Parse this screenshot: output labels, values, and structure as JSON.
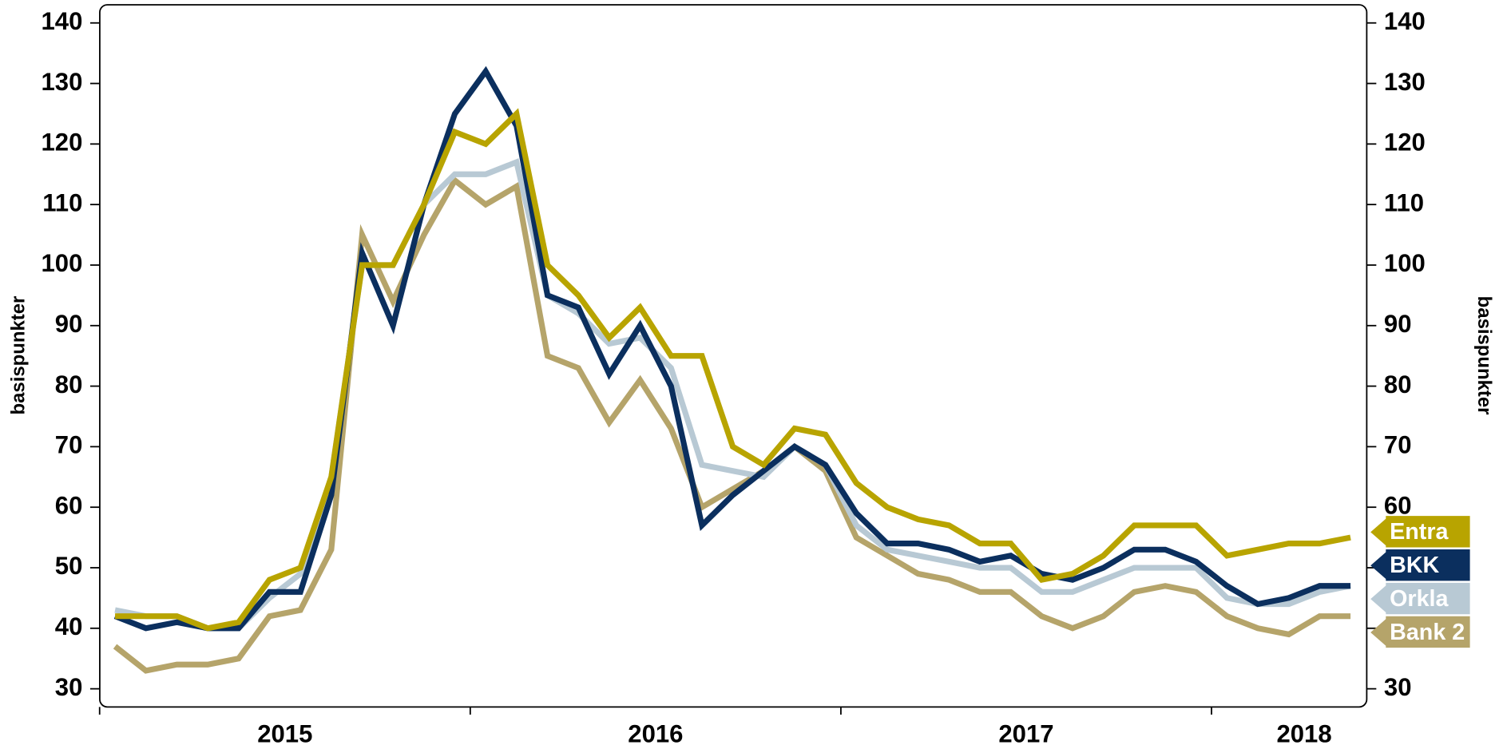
{
  "chart_data": {
    "type": "line",
    "ylabel": "basispunkter",
    "y2label": "basispunkter",
    "categories": [
      null,
      null,
      null,
      null,
      null,
      "2015",
      null,
      null,
      null,
      null,
      null,
      null,
      null,
      null,
      null,
      null,
      null,
      "2016",
      null,
      null,
      null,
      null,
      null,
      null,
      null,
      null,
      null,
      null,
      null,
      "2017",
      null,
      null,
      null,
      null,
      null,
      null,
      null,
      null,
      "2018",
      null,
      null
    ],
    "series": [
      {
        "name": "Entra",
        "color": "#b8a400",
        "values": [
          42,
          42,
          42,
          40,
          41,
          48,
          50,
          65,
          100,
          100,
          110,
          122,
          120,
          125,
          100,
          95,
          88,
          93,
          85,
          85,
          70,
          67,
          73,
          72,
          64,
          60,
          58,
          57,
          54,
          54,
          48,
          49,
          52,
          57,
          57,
          57,
          52,
          53,
          54,
          54,
          55
        ]
      },
      {
        "name": "BKK",
        "color": "#0b2f5e",
        "values": [
          42,
          40,
          41,
          40,
          40,
          46,
          46,
          62,
          102,
          90,
          110,
          125,
          132,
          123,
          95,
          93,
          82,
          90,
          80,
          57,
          62,
          66,
          70,
          67,
          59,
          54,
          54,
          53,
          51,
          52,
          49,
          48,
          50,
          53,
          53,
          51,
          47,
          44,
          45,
          47,
          47
        ]
      },
      {
        "name": "Orkla",
        "color": "#b8c9d4",
        "values": [
          43,
          42,
          42,
          40,
          40,
          45,
          49,
          65,
          100,
          100,
          110,
          115,
          115,
          117,
          95,
          92,
          87,
          88,
          83,
          67,
          66,
          65,
          70,
          67,
          57,
          53,
          52,
          51,
          50,
          50,
          46,
          46,
          48,
          50,
          50,
          50,
          45,
          44,
          44,
          46,
          47
        ]
      },
      {
        "name": "Bank 2",
        "color": "#b5a46a",
        "values": [
          37,
          33,
          34,
          34,
          35,
          42,
          43,
          53,
          105,
          94,
          105,
          114,
          110,
          113,
          85,
          83,
          74,
          81,
          73,
          60,
          63,
          66,
          70,
          66,
          55,
          52,
          49,
          48,
          46,
          46,
          42,
          40,
          42,
          46,
          47,
          46,
          42,
          40,
          39,
          42,
          42
        ]
      }
    ],
    "ylim": [
      27,
      143
    ],
    "yticks": [
      30,
      40,
      50,
      60,
      70,
      80,
      90,
      100,
      110,
      120,
      130,
      140
    ],
    "y2lim": [
      27,
      143
    ],
    "y2ticks": [
      30,
      40,
      50,
      60,
      70,
      80,
      90,
      100,
      110,
      120,
      130,
      140
    ],
    "grid": false
  }
}
